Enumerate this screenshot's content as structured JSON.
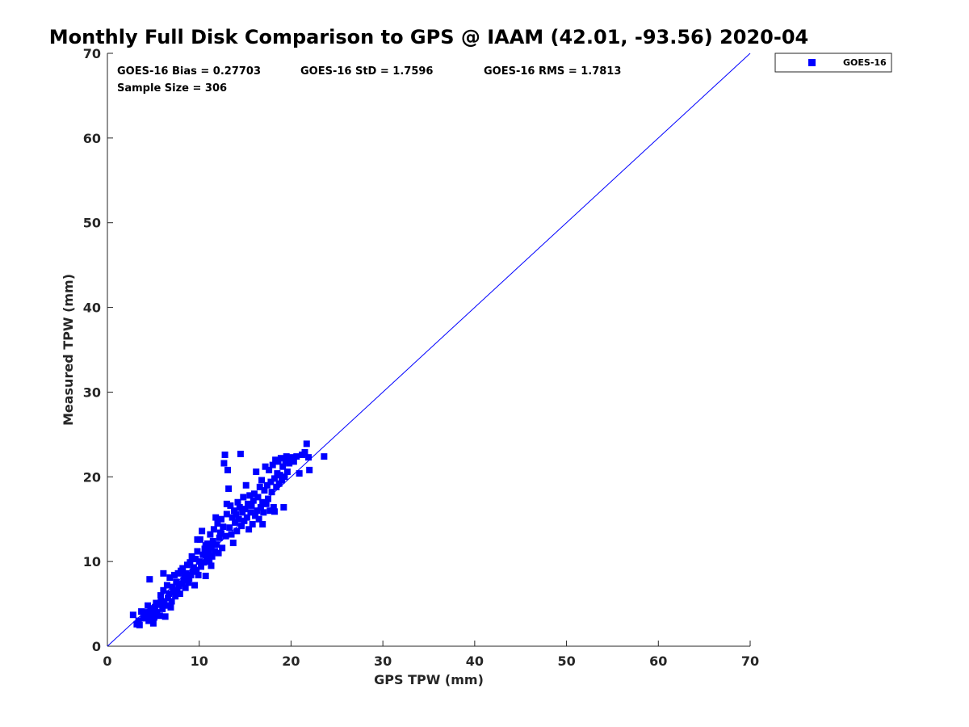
{
  "chart_data": {
    "type": "scatter",
    "title": "Monthly Full Disk Comparison to GPS @ IAAM (42.01, -93.56) 2020-04",
    "xlabel": "GPS TPW (mm)",
    "ylabel": "Measured TPW (mm)",
    "xlim": [
      0,
      70
    ],
    "ylim": [
      0,
      70
    ],
    "xticks": [
      "0",
      "10",
      "20",
      "30",
      "40",
      "50",
      "60",
      "70"
    ],
    "yticks": [
      "0",
      "10",
      "20",
      "30",
      "40",
      "50",
      "60",
      "70"
    ],
    "grid": false,
    "legend_position": "outside-top-right",
    "stats": {
      "bias": "GOES-16 Bias = 0.27703",
      "std": "GOES-16 StD = 1.7596",
      "rms": "GOES-16 RMS = 1.7813",
      "sample_size": "Sample Size = 306"
    },
    "reference_line": {
      "name": "1:1 line",
      "x": [
        0,
        70
      ],
      "y": [
        0,
        70
      ],
      "color": "#0000ff"
    },
    "series": [
      {
        "name": "GOES-16",
        "color": "#0000ff",
        "marker": "square",
        "points": [
          [
            2.8,
            3.7
          ],
          [
            3.2,
            2.6
          ],
          [
            3.4,
            3.0
          ],
          [
            3.5,
            2.5
          ],
          [
            3.7,
            4.1
          ],
          [
            3.9,
            3.3
          ],
          [
            4.1,
            3.5
          ],
          [
            4.3,
            4.0
          ],
          [
            4.4,
            4.8
          ],
          [
            4.5,
            3.0
          ],
          [
            4.6,
            3.6
          ],
          [
            4.8,
            4.4
          ],
          [
            4.9,
            3.8
          ],
          [
            5.0,
            2.7
          ],
          [
            5.1,
            3.4
          ],
          [
            5.2,
            4.6
          ],
          [
            5.3,
            5.1
          ],
          [
            5.4,
            4.0
          ],
          [
            5.6,
            4.9
          ],
          [
            5.7,
            3.6
          ],
          [
            5.8,
            6.0
          ],
          [
            5.9,
            5.3
          ],
          [
            6.0,
            4.4
          ],
          [
            6.1,
            6.6
          ],
          [
            6.2,
            5.1
          ],
          [
            6.3,
            3.5
          ],
          [
            6.4,
            4.8
          ],
          [
            6.5,
            7.2
          ],
          [
            6.6,
            5.7
          ],
          [
            6.7,
            6.2
          ],
          [
            6.8,
            8.1
          ],
          [
            6.9,
            4.6
          ],
          [
            7.0,
            5.3
          ],
          [
            7.1,
            7.0
          ],
          [
            7.2,
            6.4
          ],
          [
            7.3,
            8.4
          ],
          [
            7.4,
            5.9
          ],
          [
            7.5,
            7.6
          ],
          [
            7.6,
            6.6
          ],
          [
            7.7,
            8.6
          ],
          [
            7.8,
            7.1
          ],
          [
            7.9,
            6.2
          ],
          [
            8.0,
            8.9
          ],
          [
            8.1,
            7.4
          ],
          [
            8.2,
            9.2
          ],
          [
            8.3,
            7.8
          ],
          [
            8.4,
            8.2
          ],
          [
            8.5,
            6.9
          ],
          [
            8.6,
            8.6
          ],
          [
            8.7,
            9.6
          ],
          [
            8.8,
            7.5
          ],
          [
            8.9,
            8.0
          ],
          [
            9.0,
            9.9
          ],
          [
            9.1,
            8.4
          ],
          [
            9.2,
            10.6
          ],
          [
            9.3,
            8.8
          ],
          [
            9.4,
            9.3
          ],
          [
            9.5,
            7.2
          ],
          [
            9.6,
            10.3
          ],
          [
            9.7,
            9.0
          ],
          [
            9.8,
            11.2
          ],
          [
            9.9,
            8.4
          ],
          [
            10.0,
            10.0
          ],
          [
            10.1,
            12.6
          ],
          [
            10.2,
            9.4
          ],
          [
            10.3,
            13.6
          ],
          [
            10.4,
            10.8
          ],
          [
            10.5,
            9.9
          ],
          [
            10.6,
            11.5
          ],
          [
            10.7,
            8.3
          ],
          [
            10.8,
            10.3
          ],
          [
            10.9,
            12.1
          ],
          [
            11.0,
            11.0
          ],
          [
            11.1,
            10.0
          ],
          [
            11.2,
            13.2
          ],
          [
            11.3,
            11.7
          ],
          [
            11.4,
            10.6
          ],
          [
            11.5,
            12.4
          ],
          [
            11.6,
            13.8
          ],
          [
            11.7,
            11.2
          ],
          [
            11.8,
            15.2
          ],
          [
            11.9,
            12.0
          ],
          [
            12.0,
            14.5
          ],
          [
            12.1,
            11.0
          ],
          [
            12.2,
            12.8
          ],
          [
            12.3,
            13.4
          ],
          [
            12.4,
            15.0
          ],
          [
            12.5,
            11.6
          ],
          [
            12.6,
            14.1
          ],
          [
            12.7,
            21.6
          ],
          [
            12.8,
            22.6
          ],
          [
            12.9,
            13.0
          ],
          [
            13.0,
            15.6
          ],
          [
            13.1,
            20.8
          ],
          [
            13.2,
            18.6
          ],
          [
            13.3,
            14.0
          ],
          [
            13.4,
            16.6
          ],
          [
            13.5,
            13.2
          ],
          [
            13.6,
            15.2
          ],
          [
            13.7,
            12.2
          ],
          [
            13.8,
            16.0
          ],
          [
            13.9,
            14.6
          ],
          [
            14.0,
            15.6
          ],
          [
            14.1,
            13.6
          ],
          [
            14.2,
            17.0
          ],
          [
            14.3,
            15.0
          ],
          [
            14.4,
            16.4
          ],
          [
            14.5,
            22.7
          ],
          [
            14.6,
            14.2
          ],
          [
            14.7,
            15.8
          ],
          [
            14.8,
            17.6
          ],
          [
            14.9,
            14.8
          ],
          [
            15.0,
            16.2
          ],
          [
            15.1,
            19.0
          ],
          [
            15.2,
            15.2
          ],
          [
            15.3,
            16.8
          ],
          [
            15.4,
            13.8
          ],
          [
            15.5,
            17.8
          ],
          [
            15.6,
            15.8
          ],
          [
            15.7,
            16.6
          ],
          [
            15.8,
            14.4
          ],
          [
            15.9,
            17.2
          ],
          [
            16.0,
            18.0
          ],
          [
            16.1,
            15.4
          ],
          [
            16.2,
            20.6
          ],
          [
            16.3,
            16.0
          ],
          [
            16.4,
            17.6
          ],
          [
            16.5,
            15.0
          ],
          [
            16.6,
            18.8
          ],
          [
            16.7,
            16.4
          ],
          [
            16.8,
            19.6
          ],
          [
            16.9,
            17.0
          ],
          [
            17.0,
            15.8
          ],
          [
            17.1,
            18.4
          ],
          [
            17.2,
            21.2
          ],
          [
            17.3,
            16.8
          ],
          [
            17.4,
            19.0
          ],
          [
            17.5,
            17.4
          ],
          [
            17.6,
            20.8
          ],
          [
            17.7,
            16.0
          ],
          [
            17.8,
            19.4
          ],
          [
            17.9,
            18.2
          ],
          [
            18.0,
            21.4
          ],
          [
            18.1,
            16.4
          ],
          [
            18.2,
            19.8
          ],
          [
            18.3,
            22.0
          ],
          [
            18.4,
            18.8
          ],
          [
            18.5,
            20.4
          ],
          [
            18.6,
            21.8
          ],
          [
            18.7,
            19.2
          ],
          [
            18.8,
            20.2
          ],
          [
            18.9,
            22.2
          ],
          [
            19.0,
            19.6
          ],
          [
            19.1,
            21.2
          ],
          [
            19.2,
            16.4
          ],
          [
            19.3,
            20.0
          ],
          [
            19.4,
            21.8
          ],
          [
            19.5,
            22.4
          ],
          [
            19.6,
            20.6
          ],
          [
            19.7,
            22.0
          ],
          [
            19.8,
            21.6
          ],
          [
            20.0,
            22.3
          ],
          [
            20.3,
            21.8
          ],
          [
            20.6,
            22.4
          ],
          [
            20.9,
            20.4
          ],
          [
            21.2,
            22.6
          ],
          [
            21.5,
            22.9
          ],
          [
            21.7,
            23.9
          ],
          [
            21.9,
            22.3
          ],
          [
            22.0,
            20.8
          ],
          [
            23.6,
            22.4
          ],
          [
            6.1,
            8.6
          ],
          [
            4.6,
            7.9
          ],
          [
            9.8,
            12.6
          ],
          [
            11.3,
            9.5
          ],
          [
            13.0,
            16.8
          ],
          [
            16.9,
            14.4
          ],
          [
            18.2,
            15.9
          ],
          [
            12.4,
            13.3
          ],
          [
            10.7,
            11.9
          ]
        ]
      }
    ]
  }
}
